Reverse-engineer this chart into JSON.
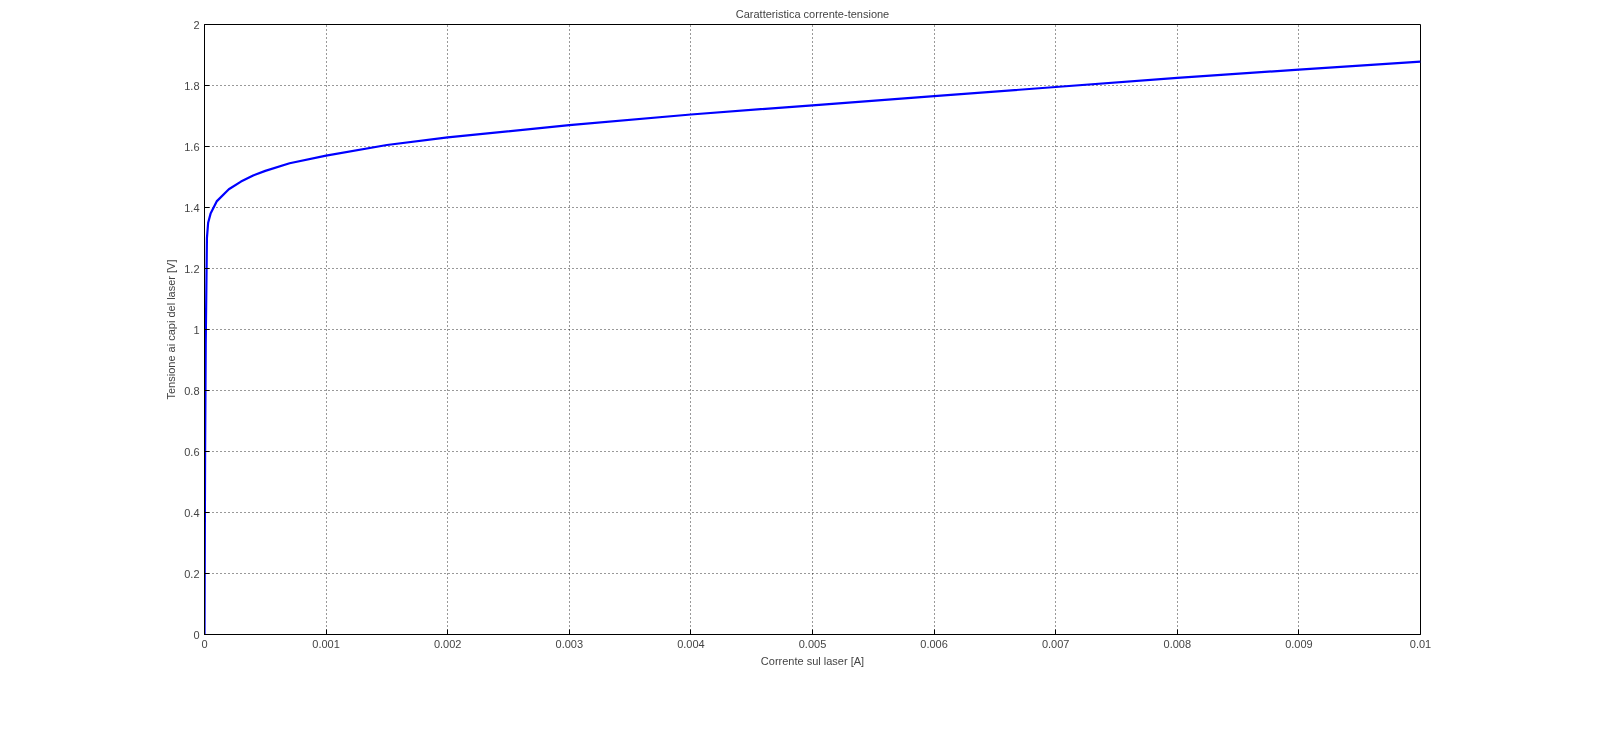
{
  "chart_data": {
    "type": "line",
    "title": "Caratteristica corrente-tensione",
    "xlabel": "Corrente sul laser [A]",
    "ylabel": "Tensione ai capi del laser [V]",
    "x": [
      0,
      5e-06,
      1e-05,
      2e-05,
      3e-05,
      5e-05,
      0.0001,
      0.0002,
      0.0003,
      0.0004,
      0.0005,
      0.0007,
      0.001,
      0.0015,
      0.002,
      0.003,
      0.004,
      0.005,
      0.006,
      0.007,
      0.008,
      0.009,
      0.01
    ],
    "series": [
      {
        "color": "#0000ff",
        "values": [
          0,
          0.6,
          0.95,
          1.3,
          1.35,
          1.38,
          1.42,
          1.46,
          1.485,
          1.505,
          1.52,
          1.545,
          1.57,
          1.605,
          1.63,
          1.67,
          1.705,
          1.735,
          1.765,
          1.795,
          1.825,
          1.852,
          1.878
        ]
      }
    ],
    "xlim": [
      0,
      0.01
    ],
    "ylim": [
      0,
      2
    ],
    "xticks": [
      0,
      0.001,
      0.002,
      0.003,
      0.004,
      0.005,
      0.006,
      0.007,
      0.008,
      0.009,
      0.01
    ],
    "yticks": [
      0,
      0.2,
      0.4,
      0.6,
      0.8,
      1,
      1.2,
      1.4,
      1.6,
      1.8,
      2
    ],
    "grid": true,
    "line_style": "solid",
    "marker": "none"
  }
}
